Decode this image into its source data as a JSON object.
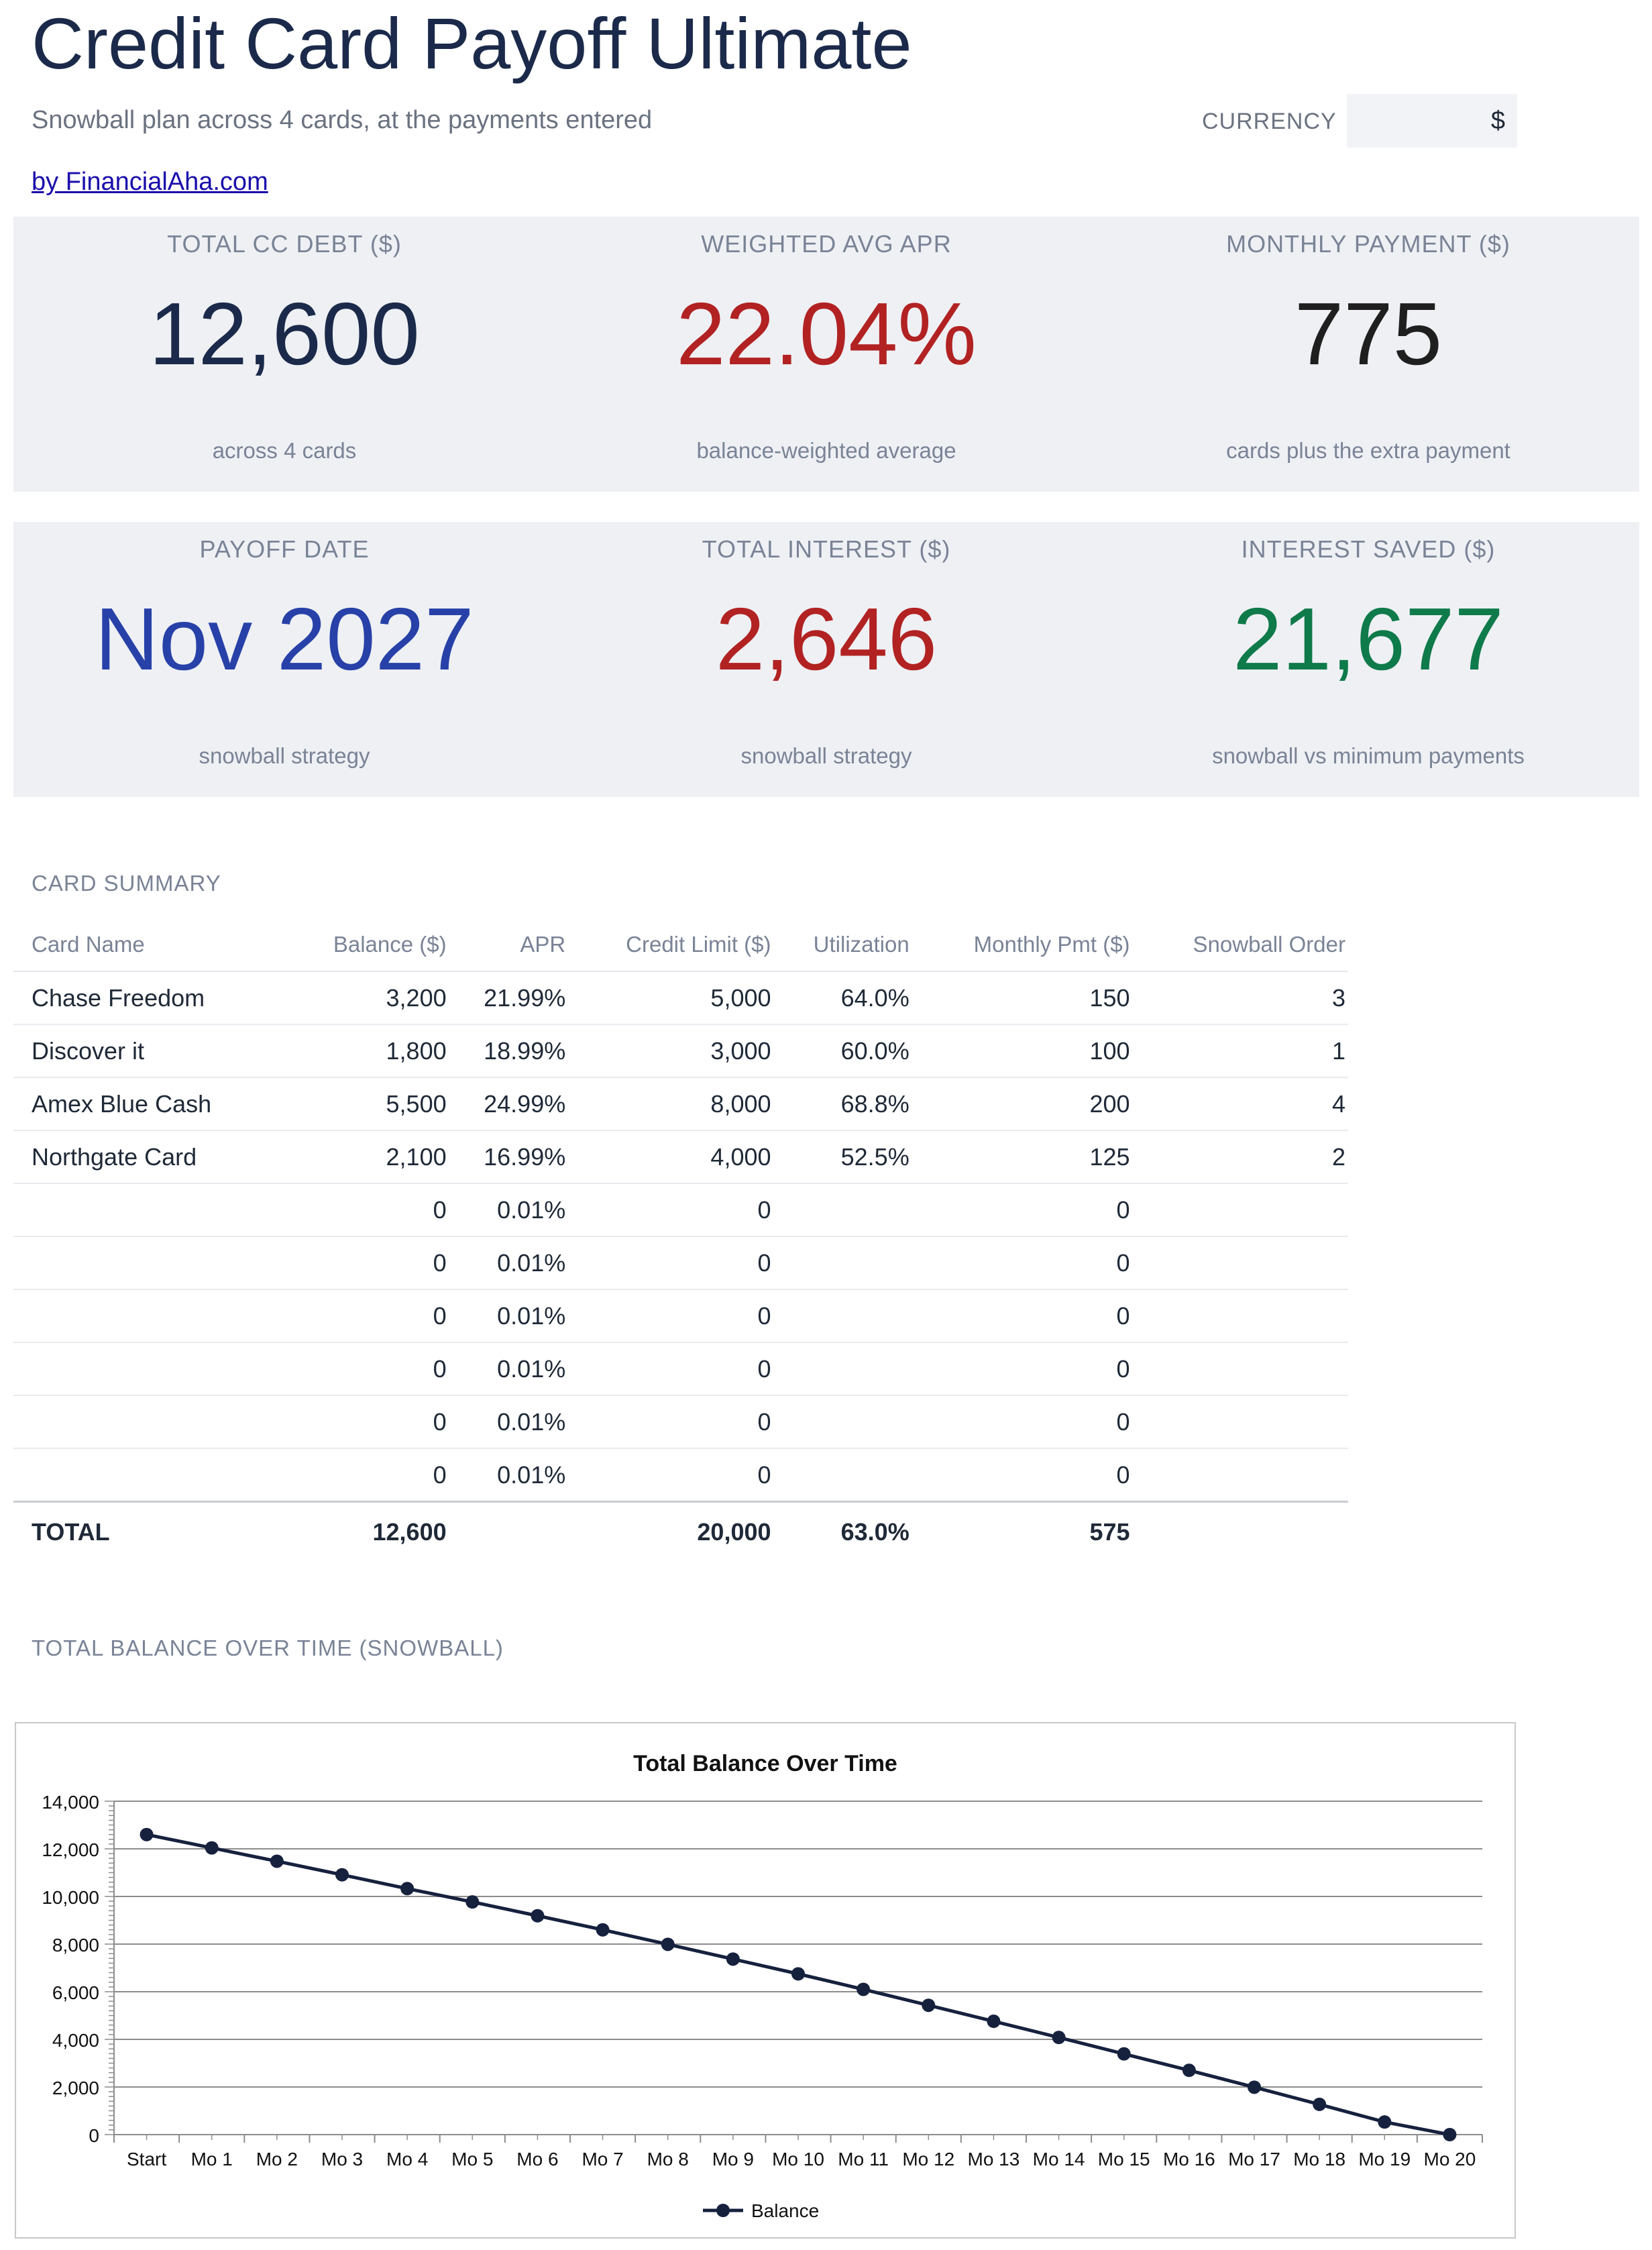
{
  "header": {
    "title": "Credit Card Payoff Ultimate",
    "subtitle": "Snowball plan across 4 cards, at the payments entered",
    "byline": "by FinancialAha.com",
    "currency_label": "CURRENCY",
    "currency_value": "$"
  },
  "kpis": {
    "total_debt": {
      "label": "TOTAL CC DEBT ($)",
      "value": "12,600",
      "sub": "across 4 cards",
      "color": "#1b2a4a"
    },
    "avg_apr": {
      "label": "WEIGHTED AVG APR",
      "value": "22.04%",
      "sub": "balance-weighted average",
      "color": "#b22222"
    },
    "monthly_payment": {
      "label": "MONTHLY PAYMENT ($)",
      "value": "775",
      "sub": "cards plus the extra payment",
      "color": "#1f1f1f"
    },
    "payoff_date": {
      "label": "PAYOFF DATE",
      "value": "Nov 2027",
      "sub": "snowball strategy",
      "color": "#2741a8"
    },
    "total_interest": {
      "label": "TOTAL INTEREST ($)",
      "value": "2,646",
      "sub": "snowball strategy",
      "color": "#b22222"
    },
    "interest_saved": {
      "label": "INTEREST SAVED ($)",
      "value": "21,677",
      "sub": "snowball vs minimum payments",
      "color": "#0f7a4a"
    }
  },
  "card_summary": {
    "title": "CARD SUMMARY",
    "columns": [
      "Card Name",
      "Balance ($)",
      "APR",
      "Credit Limit ($)",
      "Utilization",
      "Monthly Pmt ($)",
      "Snowball Order"
    ],
    "rows": [
      [
        "Chase Freedom",
        "3,200",
        "21.99%",
        "5,000",
        "64.0%",
        "150",
        "3"
      ],
      [
        "Discover it",
        "1,800",
        "18.99%",
        "3,000",
        "60.0%",
        "100",
        "1"
      ],
      [
        "Amex Blue Cash",
        "5,500",
        "24.99%",
        "8,000",
        "68.8%",
        "200",
        "4"
      ],
      [
        "Northgate Card",
        "2,100",
        "16.99%",
        "4,000",
        "52.5%",
        "125",
        "2"
      ],
      [
        "",
        "0",
        "0.01%",
        "0",
        "",
        "0",
        ""
      ],
      [
        "",
        "0",
        "0.01%",
        "0",
        "",
        "0",
        ""
      ],
      [
        "",
        "0",
        "0.01%",
        "0",
        "",
        "0",
        ""
      ],
      [
        "",
        "0",
        "0.01%",
        "0",
        "",
        "0",
        ""
      ],
      [
        "",
        "0",
        "0.01%",
        "0",
        "",
        "0",
        ""
      ],
      [
        "",
        "0",
        "0.01%",
        "0",
        "",
        "0",
        ""
      ]
    ],
    "total": [
      "TOTAL",
      "12,600",
      "",
      "20,000",
      "63.0%",
      "575",
      ""
    ]
  },
  "chart_section_title": "TOTAL BALANCE OVER TIME (SNOWBALL)",
  "chart_data": {
    "type": "line",
    "title": "Total Balance Over Time",
    "categories": [
      "Start",
      "Mo 1",
      "Mo 2",
      "Mo 3",
      "Mo 4",
      "Mo 5",
      "Mo 6",
      "Mo 7",
      "Mo 8",
      "Mo 9",
      "Mo 10",
      "Mo 11",
      "Mo 12",
      "Mo 13",
      "Mo 14",
      "Mo 15",
      "Mo 16",
      "Mo 17",
      "Mo 18",
      "Mo 19",
      "Mo 20"
    ],
    "series": [
      {
        "name": "Balance",
        "values": [
          12600,
          12040,
          11480,
          10910,
          10330,
          9770,
          9190,
          8600,
          7990,
          7370,
          6750,
          6100,
          5430,
          4760,
          4080,
          3390,
          2700,
          1990,
          1270,
          530,
          0
        ]
      }
    ],
    "ylim": [
      0,
      14000
    ],
    "yticks": [
      "0",
      "2,000",
      "4,000",
      "6,000",
      "8,000",
      "10,000",
      "12,000",
      "14,000"
    ],
    "grid": true,
    "legend": "bottom",
    "line_color": "#16213e"
  }
}
